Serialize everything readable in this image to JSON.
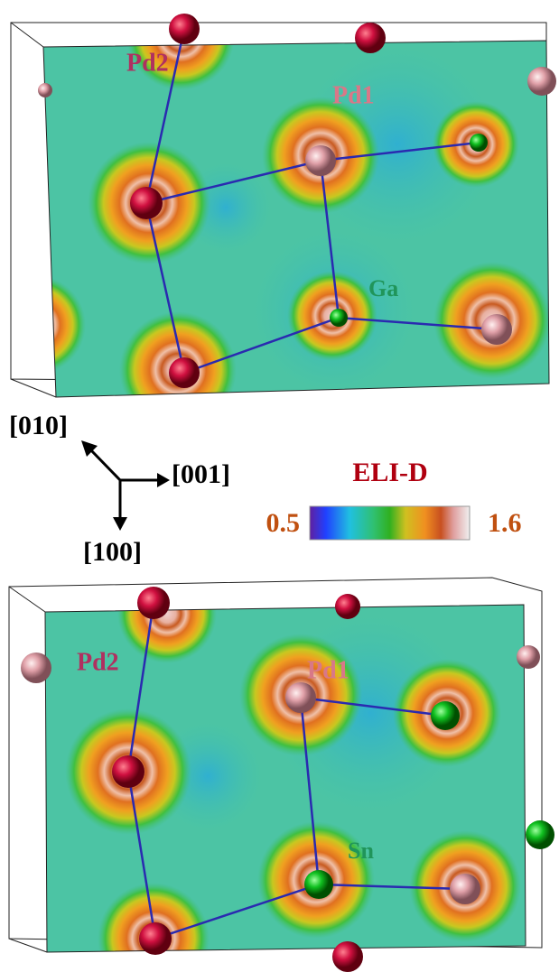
{
  "top_panel": {
    "labels": [
      "Pd2",
      "Pd1",
      "Ga"
    ]
  },
  "axes": {
    "up_left": "[010]",
    "right": "[001]",
    "down": "[100]"
  },
  "colorbar": {
    "title": "ELI-D",
    "min": "0.5",
    "max": "1.6"
  },
  "bottom_panel": {
    "labels": [
      "Pd2",
      "Pd1",
      "Sn"
    ]
  }
}
